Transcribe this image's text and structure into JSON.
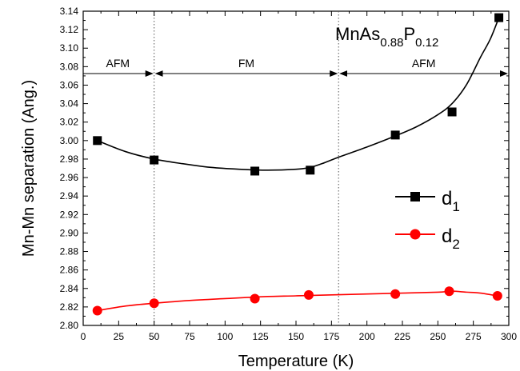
{
  "chart_data": {
    "type": "scatter",
    "xlabel": "Temperature (K)",
    "ylabel": "Mn-Mn separation (Ang.)",
    "xlim": [
      0,
      300
    ],
    "ylim": [
      2.8,
      3.14
    ],
    "x_ticks": [
      0,
      25,
      50,
      75,
      100,
      125,
      150,
      175,
      200,
      225,
      250,
      275,
      300
    ],
    "y_ticks": [
      2.8,
      2.82,
      2.84,
      2.86,
      2.88,
      2.9,
      2.92,
      2.94,
      2.96,
      2.98,
      3.0,
      3.02,
      3.04,
      3.06,
      3.08,
      3.1,
      3.12,
      3.14
    ],
    "grid": false,
    "legend_position": "right",
    "annotation": {
      "compound": {
        "base1": "MnAs",
        "sub1": "0.88",
        "base2": "P",
        "sub2": "0.12"
      },
      "boundaries": [
        50,
        180
      ],
      "regions": [
        {
          "label": "AFM",
          "x_range": [
            0,
            50
          ]
        },
        {
          "label": "FM",
          "x_range": [
            50,
            180
          ]
        },
        {
          "label": "AFM",
          "x_range": [
            180,
            300
          ]
        }
      ]
    },
    "series": [
      {
        "name": "d",
        "sub": "1",
        "marker": "square",
        "color": "#000000",
        "x": [
          10,
          50,
          121,
          160,
          220,
          260,
          293
        ],
        "y": [
          3.0,
          2.979,
          2.967,
          2.968,
          3.006,
          3.031,
          3.133
        ],
        "fit_x": [
          10,
          30,
          50,
          70,
          90,
          110,
          130,
          150,
          160,
          170,
          180,
          200,
          220,
          235,
          250,
          260,
          270,
          280,
          287,
          293
        ],
        "fit_y": [
          3.0,
          2.988,
          2.98,
          2.975,
          2.971,
          2.969,
          2.968,
          2.969,
          2.971,
          2.976,
          2.982,
          2.993,
          3.005,
          3.015,
          3.028,
          3.04,
          3.06,
          3.09,
          3.11,
          3.133
        ]
      },
      {
        "name": "d",
        "sub": "2",
        "marker": "circle",
        "color": "#ff0000",
        "x": [
          10,
          50,
          121,
          159,
          220,
          258,
          292
        ],
        "y": [
          2.816,
          2.824,
          2.829,
          2.833,
          2.834,
          2.837,
          2.832
        ],
        "fit_x": [
          10,
          30,
          50,
          75,
          100,
          125,
          150,
          175,
          200,
          225,
          250,
          260,
          270,
          280,
          292
        ],
        "fit_y": [
          2.816,
          2.821,
          2.824,
          2.827,
          2.829,
          2.831,
          2.832,
          2.833,
          2.834,
          2.835,
          2.836,
          2.837,
          2.836,
          2.835,
          2.832
        ]
      }
    ]
  }
}
